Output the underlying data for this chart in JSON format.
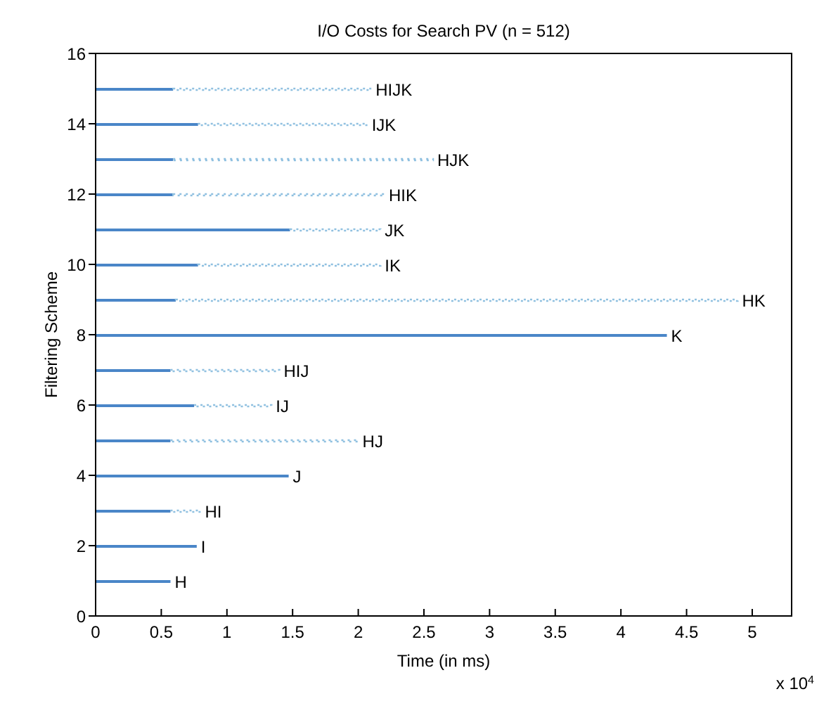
{
  "chart_data": {
    "type": "bar",
    "orientation": "horizontal",
    "stacked": true,
    "title": "I/O Costs for Search PV (n = 512)",
    "xlabel": "Time (in ms)",
    "ylabel": "Filtering Scheme",
    "x": [
      1,
      2,
      3,
      4,
      5,
      6,
      7,
      8,
      9,
      10,
      11,
      12,
      13,
      14,
      15
    ],
    "series": [
      {
        "color": "#4a86c8",
        "line_style": "solid",
        "values": [
          0.57,
          0.77,
          0.57,
          1.47,
          0.57,
          0.75,
          0.57,
          4.35,
          0.61,
          0.78,
          1.48,
          0.59,
          0.59,
          0.78,
          0.59
        ],
        "value_labels": [
          "H",
          "I",
          null,
          "J",
          null,
          null,
          null,
          "K",
          null,
          null,
          null,
          null,
          null,
          null,
          null
        ]
      },
      {
        "color": "#8fc0e0",
        "line_style": "dotted",
        "values": [
          null,
          null,
          0.23,
          null,
          1.43,
          0.59,
          0.83,
          null,
          4.28,
          1.39,
          0.69,
          1.61,
          1.98,
          1.29,
          1.51
        ],
        "value_labels": [
          null,
          null,
          "HI",
          null,
          "HJ",
          "IJ",
          "HIJ",
          null,
          "HK",
          "IK",
          "JK",
          "HIK",
          "HJK",
          "IJK",
          "HIJK"
        ]
      }
    ],
    "xlim": [
      0,
      5.3
    ],
    "xticks": [
      0,
      0.5,
      1,
      1.5,
      2,
      2.5,
      3,
      3.5,
      4,
      4.5,
      5
    ],
    "ylim": [
      0,
      16
    ],
    "yticks": [
      0,
      2,
      4,
      6,
      8,
      10,
      12,
      14,
      16
    ],
    "annotations": [
      "x 10$^{4}$"
    ]
  }
}
